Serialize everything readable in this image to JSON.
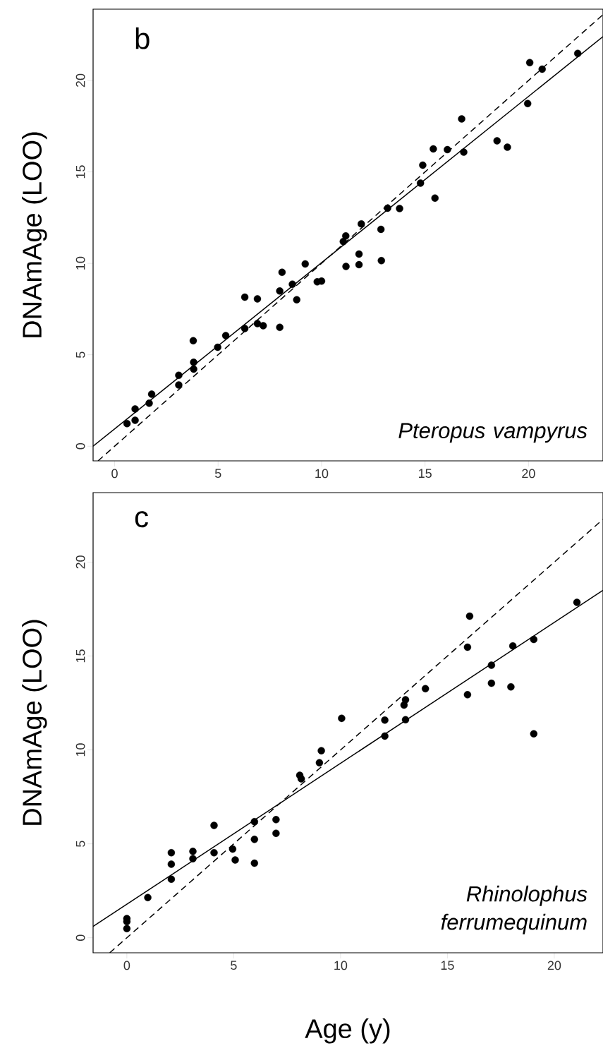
{
  "chart_data": [
    {
      "type": "scatter",
      "ylabel": "DNAmAge (LOO)",
      "xlim": [
        -1.04,
        23.6
      ],
      "ylim": [
        -0.8,
        23.9
      ],
      "xticks": [
        0,
        5,
        10,
        15,
        20
      ],
      "yticks": [
        0,
        5,
        10,
        15,
        20
      ],
      "annotations": [
        "b",
        "Pteropus vampyrus"
      ],
      "series": [
        {
          "color": "#000000",
          "marker": "circle",
          "x": [
            0.6,
            0.99,
            0.99,
            1.67,
            1.79,
            3.1,
            3.1,
            3.82,
            3.82,
            3.8,
            4.98,
            5.37,
            6.29,
            6.29,
            6.9,
            6.9,
            7.18,
            7.98,
            7.98,
            8.09,
            8.59,
            8.8,
            9.21,
            9.79,
            10.0,
            11.18,
            11.81,
            11.81,
            12.89,
            11.17,
            11.05,
            11.92,
            12.87,
            13.19,
            13.77,
            14.78,
            14.89,
            15.4,
            15.48,
            16.08,
            16.77,
            16.87,
            18.48,
            18.98,
            19.96,
            20.06,
            20.66,
            22.38
          ],
          "values": [
            1.24,
            1.42,
            2.04,
            2.35,
            2.85,
            3.35,
            3.88,
            4.22,
            4.59,
            5.77,
            5.41,
            6.05,
            6.44,
            8.15,
            8.06,
            6.71,
            6.59,
            6.5,
            8.49,
            9.51,
            8.86,
            8.01,
            9.97,
            8.99,
            9.03,
            9.83,
            10.51,
            9.93,
            10.15,
            11.5,
            11.19,
            12.16,
            11.86,
            13.02,
            13.0,
            14.39,
            15.37,
            16.26,
            13.57,
            16.22,
            17.9,
            16.08,
            16.7,
            16.35,
            18.74,
            20.98,
            20.62,
            21.48
          ]
        },
        {
          "type": "line",
          "color": "#000000",
          "line_style": "solid",
          "x": [
            -1.04,
            23.6
          ],
          "values": [
            0.0,
            22.4
          ]
        },
        {
          "type": "line",
          "color": "#000000",
          "line_style": "dashed",
          "x": [
            -0.8,
            23.6
          ],
          "values": [
            -0.8,
            23.6
          ]
        }
      ]
    },
    {
      "type": "scatter",
      "xlabel": "Age (y)",
      "ylabel": "DNAmAge (LOO)",
      "xlim": [
        -1.58,
        22.28
      ],
      "ylim": [
        -0.8,
        23.7
      ],
      "xticks": [
        0,
        5,
        10,
        15,
        20
      ],
      "yticks": [
        0,
        5,
        10,
        15,
        20
      ],
      "annotations": [
        "c",
        "Rhinolophus ferrumequinum"
      ],
      "series": [
        {
          "color": "#000000",
          "marker": "circle",
          "x": [
            0,
            0,
            0,
            0.98,
            2.08,
            2.08,
            2.08,
            3.09,
            3.09,
            4.08,
            4.08,
            4.95,
            5.07,
            5.97,
            5.97,
            5.97,
            6.98,
            6.98,
            8.09,
            8.16,
            9.01,
            9.1,
            10.05,
            12.07,
            12.07,
            13.04,
            12.97,
            13.04,
            13.97,
            15.94,
            15.94,
            16.04,
            17.06,
            17.06,
            17.97,
            18.06,
            19.04,
            19.04,
            21.06
          ],
          "values": [
            1.02,
            0.86,
            0.49,
            2.14,
            4.53,
            3.92,
            3.12,
            4.6,
            4.21,
            5.98,
            4.53,
            4.72,
            4.14,
            6.18,
            5.24,
            3.97,
            6.29,
            5.56,
            8.65,
            8.46,
            9.32,
            9.96,
            11.68,
            11.59,
            10.74,
            11.61,
            12.39,
            12.67,
            13.26,
            12.94,
            15.47,
            17.12,
            14.51,
            13.55,
            13.36,
            15.54,
            15.88,
            10.86,
            17.86
          ]
        },
        {
          "type": "line",
          "color": "#000000",
          "line_style": "solid",
          "x": [
            -1.58,
            22.28
          ],
          "values": [
            0.6,
            18.5
          ]
        },
        {
          "type": "line",
          "color": "#000000",
          "line_style": "dashed",
          "x": [
            -0.8,
            22.28
          ],
          "values": [
            -0.8,
            22.28
          ]
        }
      ]
    }
  ]
}
